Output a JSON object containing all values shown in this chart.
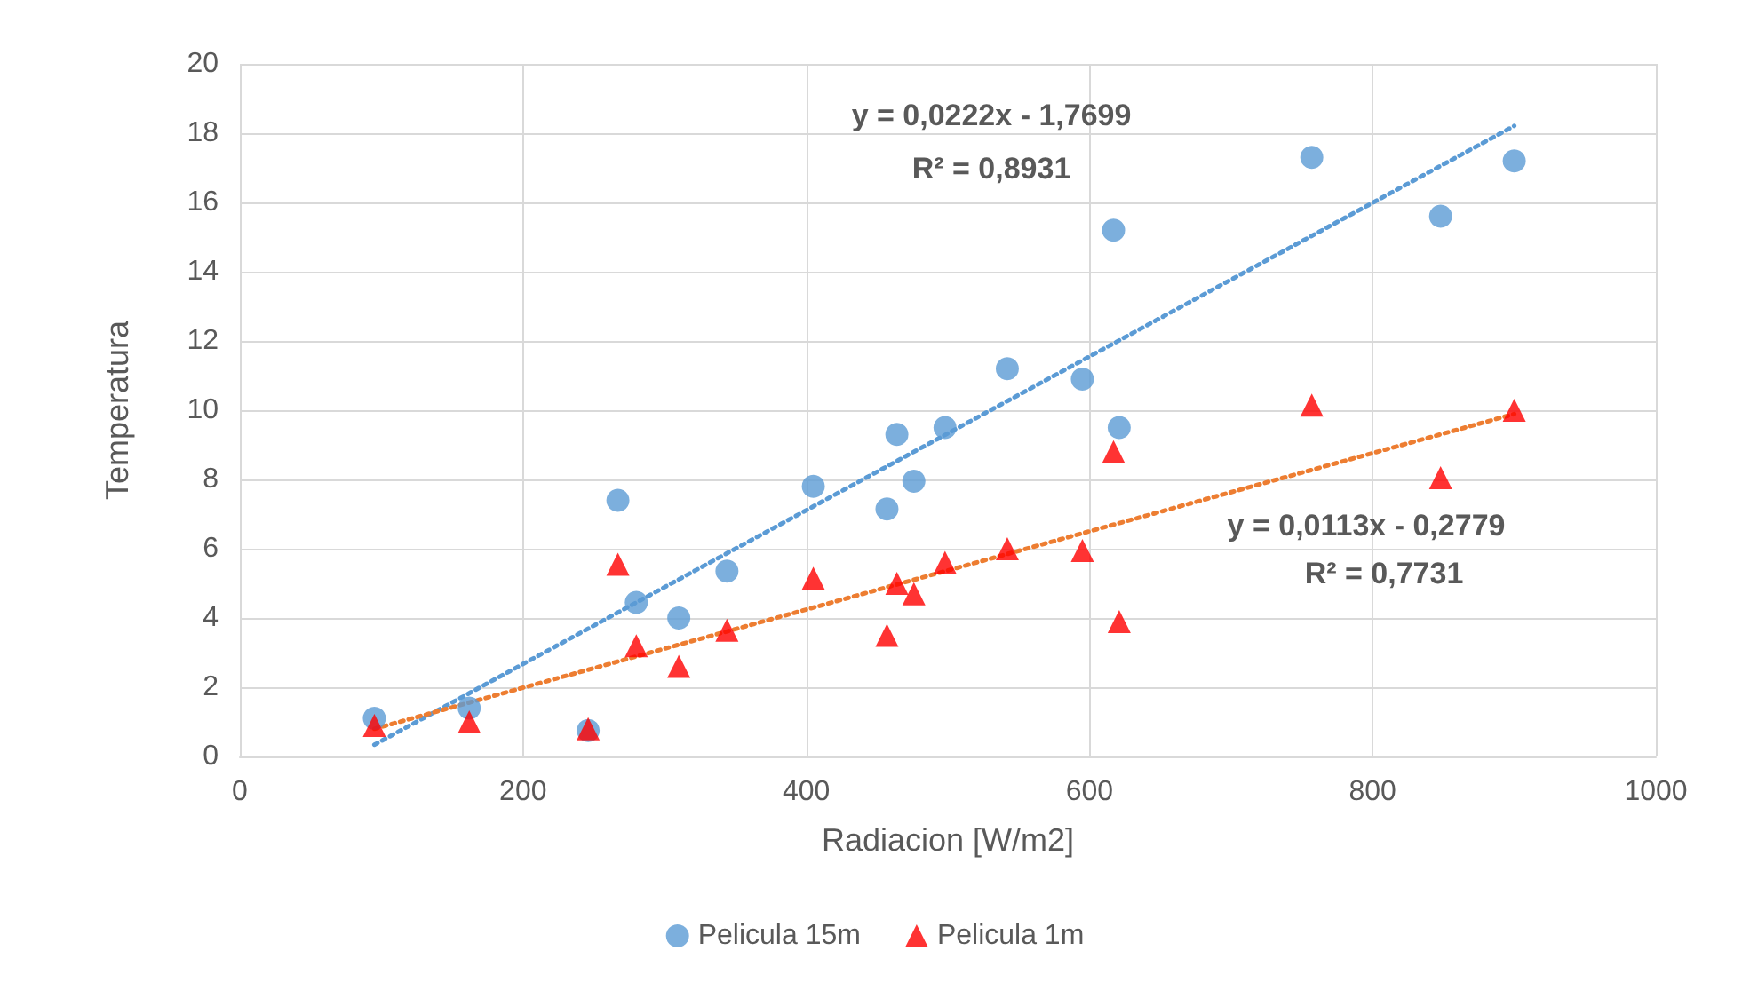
{
  "chart_data": {
    "type": "scatter",
    "xlabel": "Radiacion [W/m2]",
    "ylabel": "Temperatura",
    "xlim": [
      0,
      1000
    ],
    "xticks": [
      0,
      200,
      400,
      600,
      800,
      1000
    ],
    "ylim": [
      0,
      20
    ],
    "yticks": [
      0,
      2,
      4,
      6,
      8,
      10,
      12,
      14,
      16,
      18,
      20
    ],
    "grid": true,
    "legend": "bottom",
    "series": [
      {
        "name": "Pelicula 15m",
        "color": "#5b9bd5",
        "marker": "circle",
        "x": [
          95,
          162,
          246,
          267,
          280,
          310,
          344,
          405,
          457,
          464,
          476,
          498,
          542,
          595,
          617,
          621,
          757,
          848,
          900
        ],
        "values": [
          1.1,
          1.4,
          0.75,
          7.4,
          4.45,
          4.0,
          5.35,
          7.8,
          7.15,
          9.3,
          7.95,
          9.5,
          11.2,
          10.9,
          15.2,
          9.5,
          17.3,
          15.6,
          17.2
        ]
      },
      {
        "name": "Pelicula 1m",
        "color": "#ff0000",
        "marker": "triangle",
        "x": [
          95,
          162,
          246,
          267,
          280,
          310,
          344,
          405,
          457,
          464,
          476,
          498,
          542,
          595,
          617,
          621,
          757,
          848,
          900
        ],
        "values": [
          0.9,
          1.0,
          0.8,
          5.55,
          3.2,
          2.6,
          3.65,
          5.15,
          3.5,
          5.0,
          4.7,
          5.6,
          6.0,
          5.95,
          8.8,
          3.9,
          10.15,
          8.05,
          10.0
        ]
      },
      {
        "type": "line",
        "color": "#5b9bd5",
        "line_style": "dotted",
        "marker": "none",
        "x": [
          95,
          900
        ],
        "values": [
          0.34,
          18.21
        ]
      },
      {
        "type": "line",
        "color": "#ed7d31",
        "line_style": "dotted",
        "marker": "none",
        "x": [
          95,
          900
        ],
        "values": [
          0.8,
          9.89
        ]
      }
    ],
    "annotations": [
      "y = 0,0222x - 1,7699",
      "R² = 0,8931",
      "y = 0,0113x - 0,2779",
      "R² = 0,7731"
    ]
  }
}
